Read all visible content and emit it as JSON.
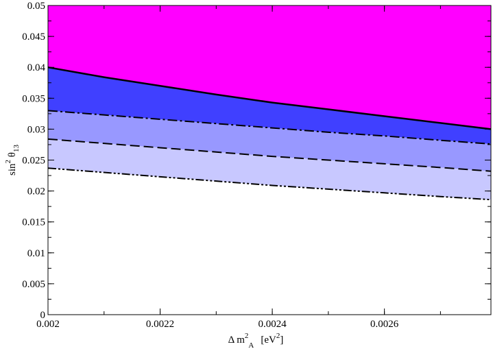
{
  "chart_data": {
    "type": "area",
    "xlabel": {
      "prefix": "Δ m",
      "sup": "2",
      "sub": "A",
      "unit_open": "[eV",
      "unit_sup": "2",
      "unit_close": "]"
    },
    "ylabel": {
      "prefix": "sin",
      "sup": "2",
      "mid": " θ",
      "sub": "13"
    },
    "xlim": [
      0.002,
      0.00279
    ],
    "ylim": [
      0,
      0.05
    ],
    "x_ticks": [
      "0.002",
      "0.0022",
      "0.0024",
      "0.0026"
    ],
    "x_tick_values": [
      0.002,
      0.0022,
      0.0024,
      0.0026
    ],
    "y_ticks": [
      "0",
      "0.005",
      "0.01",
      "0.015",
      "0.02",
      "0.025",
      "0.03",
      "0.035",
      "0.04",
      "0.045",
      "0.05"
    ],
    "y_tick_values": [
      0,
      0.005,
      0.01,
      0.015,
      0.02,
      0.025,
      0.03,
      0.035,
      0.04,
      0.045,
      0.05
    ],
    "x_minor_step": 0.0001,
    "y_minor_step": 0.0025,
    "grid": false,
    "x": [
      0.002,
      0.0021,
      0.0022,
      0.0023,
      0.0024,
      0.0025,
      0.0026,
      0.0027,
      0.00279
    ],
    "series": [
      {
        "line_style": "solid",
        "fill_color": "#ff00ff",
        "values": [
          0.04,
          0.0384,
          0.037,
          0.0356,
          0.0343,
          0.0332,
          0.0321,
          0.031,
          0.03
        ]
      },
      {
        "line_style": "dash-dot",
        "fill_color": "#4040ff",
        "values": [
          0.033,
          0.0323,
          0.0316,
          0.0309,
          0.0302,
          0.0295,
          0.0289,
          0.0282,
          0.0276
        ]
      },
      {
        "line_style": "dash",
        "fill_color": "#9898ff",
        "values": [
          0.0284,
          0.0277,
          0.027,
          0.0263,
          0.0256,
          0.025,
          0.0244,
          0.0238,
          0.0232
        ]
      },
      {
        "line_style": "dash-dot-dot",
        "fill_color": "#c8c8ff",
        "values": [
          0.0237,
          0.023,
          0.0223,
          0.0216,
          0.0209,
          0.0203,
          0.0197,
          0.0191,
          0.0186
        ]
      }
    ]
  }
}
